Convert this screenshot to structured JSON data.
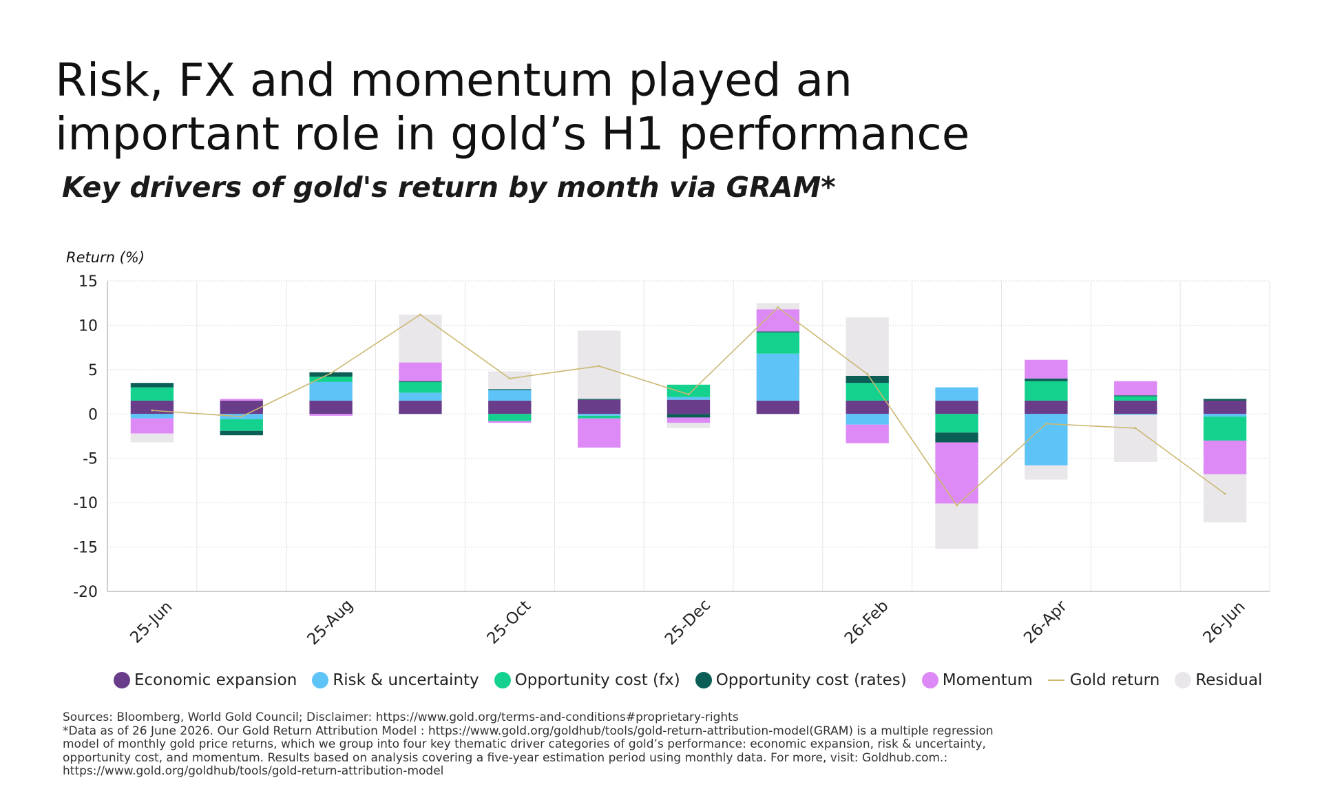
{
  "header": {
    "title": "Risk, FX and momentum played an important role in gold’s H1 performance",
    "subtitle": "Key drivers of gold's return by month via GRAM*"
  },
  "colors": {
    "economic_expansion": "#6a3d8a",
    "risk_uncertainty": "#5ec4f7",
    "opportunity_cost_fx": "#14d18e",
    "opportunity_cost_rates": "#0a5e55",
    "momentum": "#dd8af7",
    "gold_return": "#cbb872",
    "residual": "#e9e7ea",
    "grid": "#dcdcdc"
  },
  "chart_data": {
    "type": "bar",
    "stacked": true,
    "ylabel": "Return (%)",
    "ylim": [
      -20,
      15
    ],
    "yticks": [
      15,
      10,
      5,
      0,
      -5,
      -10,
      -15,
      -20
    ],
    "grid": true,
    "legend_position": "bottom",
    "categories": [
      "25-Jun",
      "25-Jul",
      "25-Aug",
      "25-Sep",
      "25-Oct",
      "25-Nov",
      "25-Dec",
      "26-Jan",
      "26-Feb",
      "26-Mar",
      "26-Apr",
      "26-May",
      "26-Jun"
    ],
    "tick_labels": [
      "25-Jun",
      "",
      "25-Aug",
      "",
      "25-Oct",
      "",
      "25-Dec",
      "",
      "26-Feb",
      "",
      "26-Apr",
      "",
      "26-Jun"
    ],
    "series": [
      {
        "name": "Economic expansion",
        "color_key": "economic_expansion",
        "values": [
          1.5,
          1.5,
          1.5,
          1.5,
          1.5,
          1.6,
          1.6,
          1.5,
          1.5,
          1.5,
          1.5,
          1.5,
          1.5
        ]
      },
      {
        "name": "Risk & uncertainty",
        "color_key": "risk_uncertainty",
        "values": [
          -0.5,
          -0.6,
          2.1,
          0.9,
          1.2,
          -0.2,
          0.3,
          5.3,
          -1.2,
          1.5,
          -5.8,
          -0.1,
          -0.3
        ]
      },
      {
        "name": "Opportunity cost (fx)",
        "color_key": "opportunity_cost_fx",
        "values": [
          1.5,
          -1.3,
          0.6,
          1.2,
          -0.8,
          -0.3,
          1.4,
          2.4,
          2.0,
          -2.1,
          2.2,
          0.5,
          -2.7
        ]
      },
      {
        "name": "Opportunity cost (rates)",
        "color_key": "opportunity_cost_rates",
        "values": [
          0.5,
          -0.5,
          0.5,
          0.1,
          0.1,
          0.1,
          -0.4,
          0.1,
          0.8,
          -1.1,
          0.3,
          0.1,
          0.2
        ]
      },
      {
        "name": "Momentum",
        "color_key": "momentum",
        "values": [
          -1.7,
          0.2,
          -0.2,
          2.1,
          -0.2,
          -3.3,
          -0.6,
          2.5,
          -2.1,
          -6.9,
          2.1,
          1.6,
          -3.8
        ]
      }
    ],
    "residual": {
      "name": "Residual",
      "color_key": "residual",
      "values": [
        -1.0,
        0.0,
        0.0,
        5.4,
        2.0,
        7.7,
        -0.6,
        0.7,
        6.6,
        -5.1,
        -1.6,
        -5.3,
        -5.4
      ]
    },
    "gold_return": {
      "name": "Gold return",
      "color_key": "gold_return",
      "values": [
        0.4,
        -0.3,
        4.6,
        11.2,
        4.0,
        5.4,
        2.2,
        12.0,
        4.5,
        -10.3,
        -1.1,
        -1.6,
        -9.0
      ]
    }
  },
  "legend": [
    {
      "label": "Economic expansion",
      "color_key": "economic_expansion",
      "kind": "dot"
    },
    {
      "label": "Risk & uncertainty",
      "color_key": "risk_uncertainty",
      "kind": "dot"
    },
    {
      "label": "Opportunity cost (fx)",
      "color_key": "opportunity_cost_fx",
      "kind": "dot"
    },
    {
      "label": "Opportunity cost (rates)",
      "color_key": "opportunity_cost_rates",
      "kind": "dot"
    },
    {
      "label": "Momentum",
      "color_key": "momentum",
      "kind": "dot"
    },
    {
      "label": "Gold return",
      "color_key": "gold_return",
      "kind": "line"
    },
    {
      "label": "Residual",
      "color_key": "residual",
      "kind": "dot"
    }
  ],
  "footer": {
    "lines": [
      "Sources: Bloomberg, World Gold Council; Disclaimer: https://www.gold.org/terms-and-conditions#proprietary-rights",
      "*Data as of 26 June 2026. Our Gold Return Attribution Model : https://www.gold.org/goldhub/tools/gold-return-attribution-model(GRAM) is a multiple regression",
      "model of monthly gold price returns, which we group into four key thematic driver categories of gold’s performance: economic expansion, risk & uncertainty,",
      "opportunity cost, and momentum. Results based on analysis covering a five-year estimation period using monthly data. For more, visit: Goldhub.com.:",
      "https://www.gold.org/goldhub/tools/gold-return-attribution-model"
    ]
  }
}
